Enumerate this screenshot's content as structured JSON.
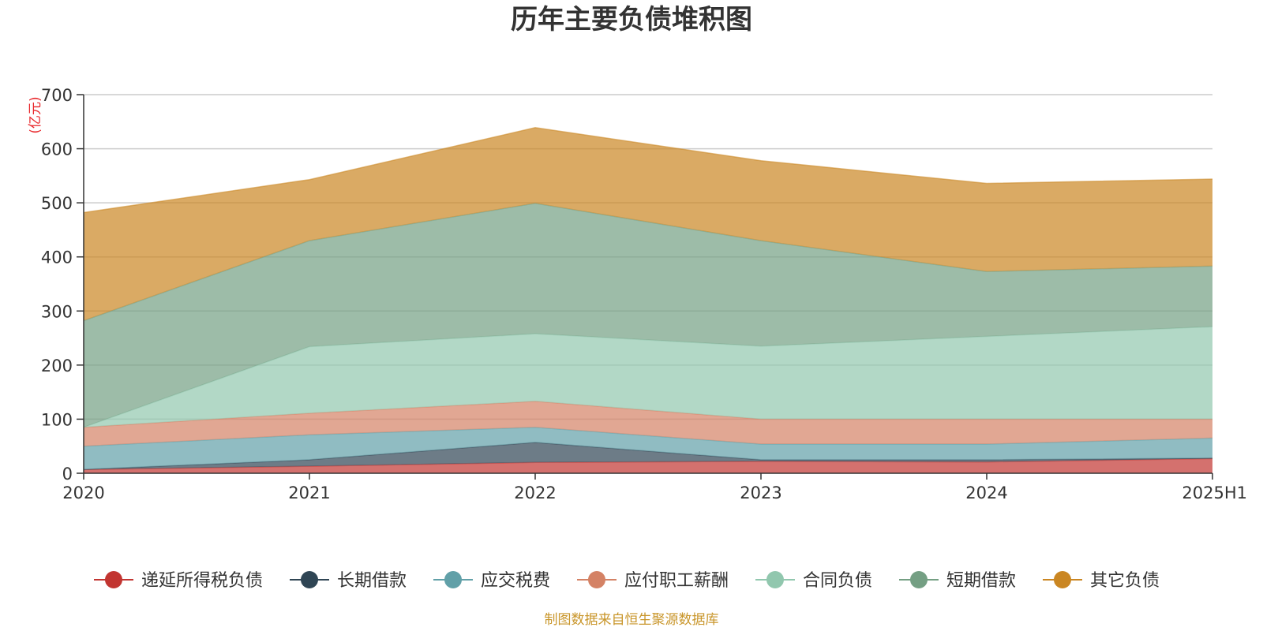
{
  "chart_data": {
    "type": "area",
    "stacked": true,
    "title": "历年主要负债堆积图",
    "unit_label": "(亿元)",
    "source_note": "制图数据来自恒生聚源数据库",
    "categories": [
      "2020",
      "2021",
      "2022",
      "2023",
      "2024",
      "2025H1"
    ],
    "ylim": [
      0,
      700
    ],
    "yticks": [
      0,
      100,
      200,
      300,
      400,
      500,
      600,
      700
    ],
    "grid": true,
    "legend_position": "bottom",
    "series": [
      {
        "name": "递延所得税负债",
        "color": "#c23531",
        "values": [
          7,
          13,
          20,
          22,
          21,
          27
        ]
      },
      {
        "name": "长期借款",
        "color": "#2f4554",
        "values": [
          0,
          12,
          37,
          3,
          4,
          1
        ]
      },
      {
        "name": "应交税费",
        "color": "#61a0a8",
        "values": [
          43,
          46,
          28,
          29,
          29,
          37
        ]
      },
      {
        "name": "应付职工薪酬",
        "color": "#d48265",
        "values": [
          35,
          40,
          48,
          46,
          46,
          35
        ]
      },
      {
        "name": "合同负债",
        "color": "#91c7ae",
        "values": [
          0,
          123,
          125,
          135,
          153,
          171
        ]
      },
      {
        "name": "短期借款",
        "color": "#749f83",
        "values": [
          197,
          196,
          241,
          195,
          120,
          112
        ]
      },
      {
        "name": "其它负债",
        "color": "#ca8622",
        "values": [
          200,
          113,
          140,
          148,
          163,
          161
        ]
      }
    ]
  }
}
